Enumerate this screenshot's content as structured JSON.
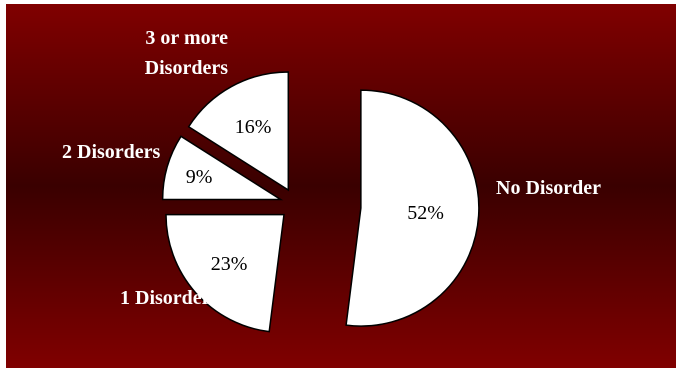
{
  "chart_data": {
    "type": "pie",
    "title": "",
    "slices": [
      {
        "label": "No Disorder",
        "value": 52,
        "value_label": "52%"
      },
      {
        "label": "1 Disorder",
        "value": 23,
        "value_label": "23%"
      },
      {
        "label": "2 Disorders",
        "value": 9,
        "value_label": "9%"
      },
      {
        "label": "3 or more Disorders",
        "label_lines": [
          "3 or more",
          "Disorders"
        ],
        "value": 16,
        "value_label": "16%"
      }
    ],
    "exploded": true,
    "legend": "none",
    "colors": {
      "background_edge": "#800000",
      "background_center": "#3a0000",
      "slice_fill": "#ffffff",
      "slice_stroke": "#000000",
      "label_color": "#ffffff"
    }
  }
}
